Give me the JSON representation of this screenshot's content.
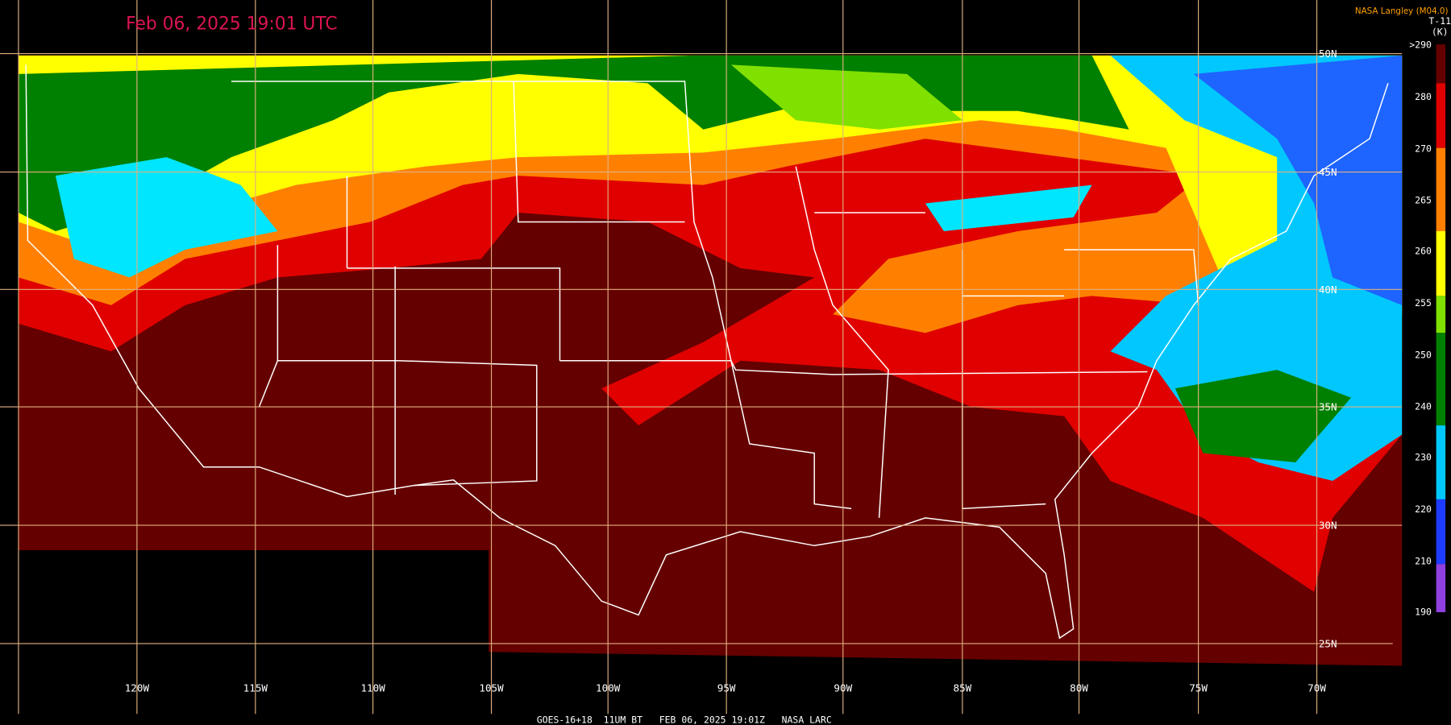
{
  "header": {
    "title": "Feb 06, 2025 19:01 UTC",
    "credit": "NASA Langley (M04.0)"
  },
  "map": {
    "longitude_labels": [
      "120W",
      "115W",
      "110W",
      "105W",
      "100W",
      "95W",
      "90W",
      "85W",
      "80W",
      "75W",
      "70W"
    ],
    "latitude_labels": [
      "50N",
      "45N",
      "40N",
      "35N",
      "30N",
      "25N"
    ]
  },
  "colorbar": {
    "title_lines": [
      "T-11",
      "(K)"
    ],
    "ticks": [
      ">290",
      "280",
      "270",
      "265",
      "260",
      "255",
      "250",
      "240",
      "230",
      "220",
      "210",
      "190"
    ]
  },
  "footer": "GOES-16+18  11UM BT   FEB 06, 2025 19:01Z   NASA LARC"
}
